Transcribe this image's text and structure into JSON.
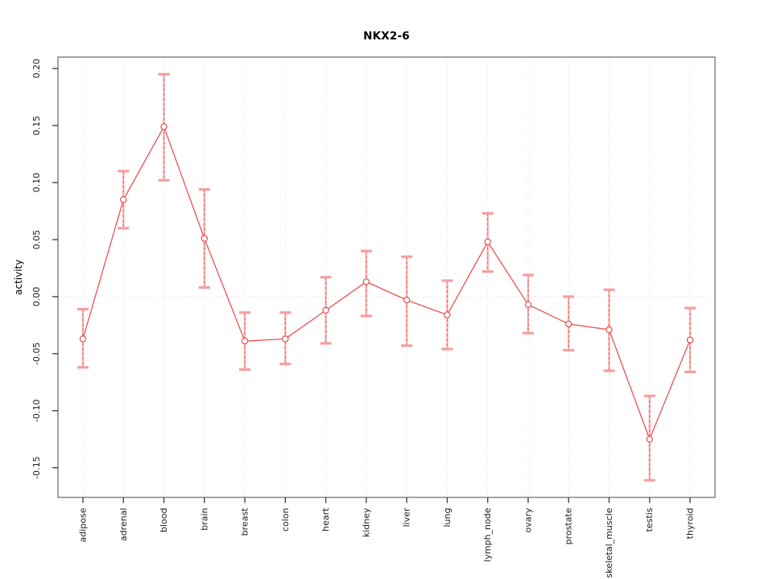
{
  "window": {
    "background": "#ffffff"
  },
  "chart_data": {
    "type": "line",
    "title": "NKX2-6",
    "xlabel": "",
    "ylabel": "activity",
    "legend": "none",
    "grid": "vertical dotted gridline at each category; horizontal dotted line at y=0",
    "categories": [
      "adipose",
      "adrenal",
      "blood",
      "brain",
      "breast",
      "colon",
      "heart",
      "kidney",
      "liver",
      "lung",
      "lymph_node",
      "ovary",
      "prostate",
      "skeletal_muscle",
      "testis",
      "thyroid"
    ],
    "series": [
      {
        "name": "activity",
        "values": [
          -0.037,
          0.085,
          0.149,
          0.051,
          -0.039,
          -0.037,
          -0.012,
          0.013,
          -0.003,
          -0.016,
          0.048,
          -0.007,
          -0.024,
          -0.029,
          -0.125,
          -0.038
        ],
        "error_low": [
          -0.062,
          0.06,
          0.102,
          0.008,
          -0.064,
          -0.059,
          -0.041,
          -0.017,
          -0.043,
          -0.046,
          0.022,
          -0.032,
          -0.047,
          -0.065,
          -0.161,
          -0.066
        ],
        "error_high": [
          -0.011,
          0.11,
          0.195,
          0.094,
          -0.014,
          -0.014,
          0.017,
          0.04,
          0.035,
          0.014,
          0.073,
          0.019,
          0.0,
          0.006,
          -0.087,
          -0.01
        ]
      }
    ],
    "y_tick_labels": [
      "0.20",
      "0.15",
      "0.10",
      "0.05",
      "0.00",
      "-0.05",
      "-0.10",
      "-0.15"
    ],
    "y_tick_values": [
      0.2,
      0.15,
      0.1,
      0.05,
      0.0,
      -0.05,
      -0.1,
      -0.15
    ],
    "ylim": [
      -0.176,
      0.21
    ],
    "zero_line": 0.0,
    "colors": {
      "point": "#e84c4c",
      "point_fill": "#ffffff",
      "line": "#f05050",
      "error_bar": "#f9b2b2",
      "error_bar_dash": "#ee6a6a",
      "error_cap": "#f59f9f",
      "grid": "#dcdcdc",
      "box_border": "#8c8c8c",
      "tick": "#444444",
      "text": "#1a1a1a"
    }
  }
}
